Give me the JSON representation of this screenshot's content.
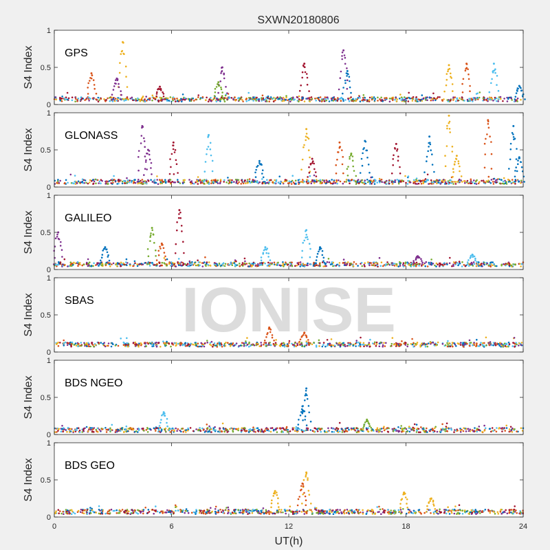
{
  "figure": {
    "title": "SXWN20180806",
    "watermark": "IONISE",
    "background": "#f0f0f0",
    "axes_background": "#ffffff"
  },
  "chart_data": {
    "type": "scatter",
    "title": "SXWN20180806",
    "xlabel": "UT(h)",
    "ylabel": "S4 Index",
    "xlim": [
      0,
      24
    ],
    "ylim": [
      0,
      1
    ],
    "xticks": [
      0,
      6,
      12,
      18,
      24
    ],
    "yticks": [
      0,
      0.5,
      1
    ],
    "grid": false,
    "legend": "none",
    "series_colors": [
      "#0072BD",
      "#D95319",
      "#EDB120",
      "#7E2F8E",
      "#77AC30",
      "#4DBEEE",
      "#A2142F"
    ],
    "panels": [
      {
        "label": "GPS",
        "baseline": 0.07,
        "peaks": [
          {
            "x": 1.9,
            "y": 0.42,
            "c": 1
          },
          {
            "x": 3.5,
            "y": 0.84,
            "c": 2
          },
          {
            "x": 3.2,
            "y": 0.35,
            "c": 3
          },
          {
            "x": 5.4,
            "y": 0.24,
            "c": 6
          },
          {
            "x": 8.6,
            "y": 0.5,
            "c": 3
          },
          {
            "x": 8.4,
            "y": 0.3,
            "c": 4
          },
          {
            "x": 12.8,
            "y": 0.55,
            "c": 6
          },
          {
            "x": 14.8,
            "y": 0.73,
            "c": 3
          },
          {
            "x": 15.0,
            "y": 0.45,
            "c": 0
          },
          {
            "x": 20.2,
            "y": 0.53,
            "c": 2
          },
          {
            "x": 21.1,
            "y": 0.55,
            "c": 1
          },
          {
            "x": 22.5,
            "y": 0.55,
            "c": 5
          },
          {
            "x": 23.8,
            "y": 0.25,
            "c": 0
          }
        ]
      },
      {
        "label": "GLONASS",
        "baseline": 0.07,
        "peaks": [
          {
            "x": 4.5,
            "y": 0.82,
            "c": 3
          },
          {
            "x": 4.8,
            "y": 0.5,
            "c": 3
          },
          {
            "x": 6.1,
            "y": 0.6,
            "c": 6
          },
          {
            "x": 7.9,
            "y": 0.7,
            "c": 5
          },
          {
            "x": 10.5,
            "y": 0.35,
            "c": 0
          },
          {
            "x": 12.9,
            "y": 0.78,
            "c": 2
          },
          {
            "x": 13.2,
            "y": 0.38,
            "c": 6
          },
          {
            "x": 14.6,
            "y": 0.6,
            "c": 1
          },
          {
            "x": 15.2,
            "y": 0.45,
            "c": 4
          },
          {
            "x": 15.9,
            "y": 0.62,
            "c": 0
          },
          {
            "x": 17.5,
            "y": 0.58,
            "c": 6
          },
          {
            "x": 19.2,
            "y": 0.68,
            "c": 0
          },
          {
            "x": 20.2,
            "y": 0.96,
            "c": 2
          },
          {
            "x": 20.6,
            "y": 0.42,
            "c": 2
          },
          {
            "x": 22.2,
            "y": 0.9,
            "c": 1
          },
          {
            "x": 23.5,
            "y": 0.82,
            "c": 0
          },
          {
            "x": 23.8,
            "y": 0.4,
            "c": 0
          }
        ]
      },
      {
        "label": "GALILEO",
        "baseline": 0.07,
        "peaks": [
          {
            "x": 0.2,
            "y": 0.5,
            "c": 3
          },
          {
            "x": 2.6,
            "y": 0.3,
            "c": 0
          },
          {
            "x": 5.0,
            "y": 0.56,
            "c": 4
          },
          {
            "x": 5.5,
            "y": 0.35,
            "c": 1
          },
          {
            "x": 6.4,
            "y": 0.8,
            "c": 6
          },
          {
            "x": 10.8,
            "y": 0.3,
            "c": 5
          },
          {
            "x": 12.9,
            "y": 0.53,
            "c": 5
          },
          {
            "x": 13.6,
            "y": 0.3,
            "c": 0
          },
          {
            "x": 18.6,
            "y": 0.18,
            "c": 3
          },
          {
            "x": 21.4,
            "y": 0.2,
            "c": 5
          }
        ]
      },
      {
        "label": "SBAS",
        "baseline": 0.1,
        "peaks": [
          {
            "x": 11.0,
            "y": 0.33,
            "c": 1
          },
          {
            "x": 12.8,
            "y": 0.26,
            "c": 1
          }
        ]
      },
      {
        "label": "BDS NGEO",
        "baseline": 0.06,
        "peaks": [
          {
            "x": 5.6,
            "y": 0.3,
            "c": 5
          },
          {
            "x": 12.9,
            "y": 0.62,
            "c": 0
          },
          {
            "x": 12.7,
            "y": 0.38,
            "c": 0
          },
          {
            "x": 16.0,
            "y": 0.2,
            "c": 4
          }
        ]
      },
      {
        "label": "BDS GEO",
        "baseline": 0.07,
        "peaks": [
          {
            "x": 11.3,
            "y": 0.35,
            "c": 2
          },
          {
            "x": 12.9,
            "y": 0.6,
            "c": 2
          },
          {
            "x": 12.7,
            "y": 0.45,
            "c": 1
          },
          {
            "x": 17.9,
            "y": 0.33,
            "c": 2
          },
          {
            "x": 19.3,
            "y": 0.25,
            "c": 2
          }
        ]
      }
    ]
  }
}
